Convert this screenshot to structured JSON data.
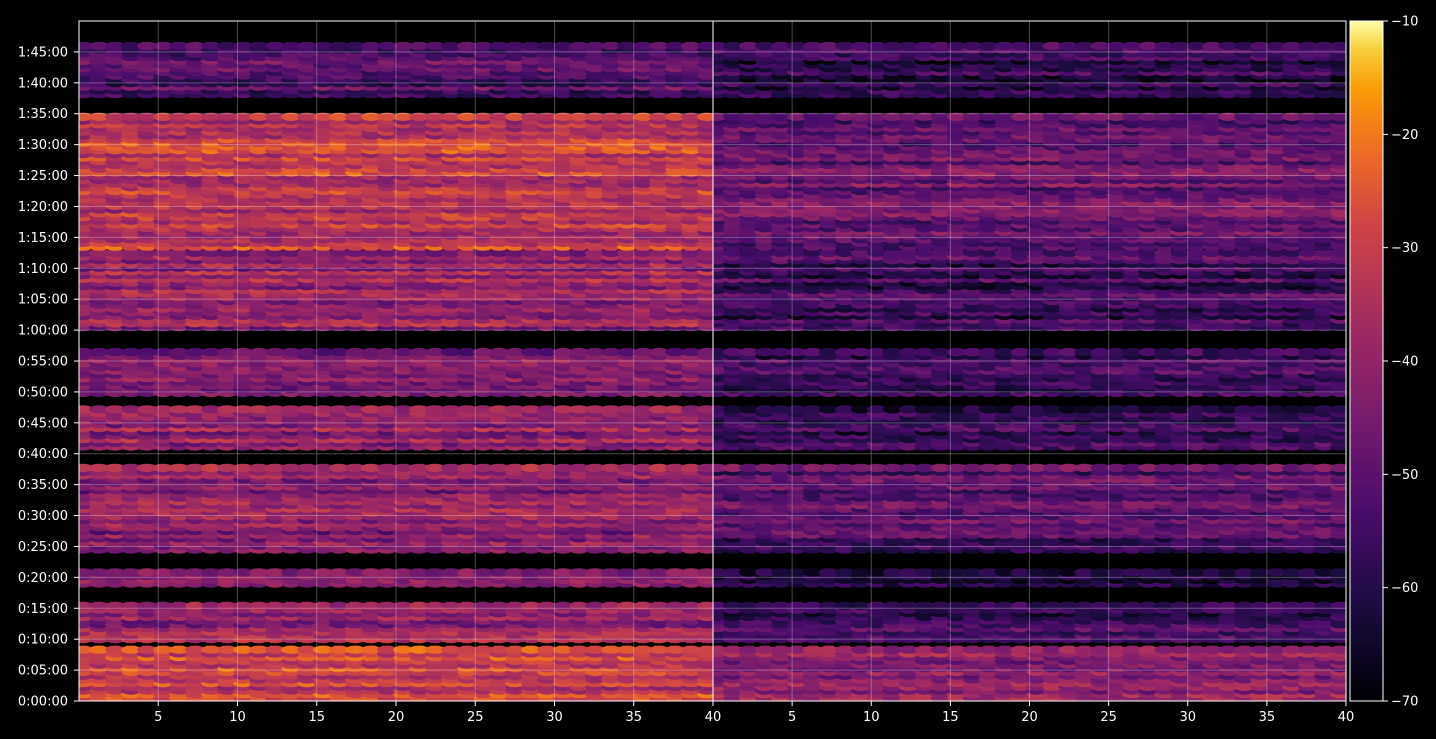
{
  "chart_data": {
    "type": "heatmap",
    "title": "",
    "xlabel": "",
    "ylabel": "",
    "colormap": "inferno",
    "background": "#000000",
    "grid": true,
    "color_range": [
      -70,
      -10
    ],
    "colorbar": {
      "ticks": [
        "-10",
        "-20",
        "-30",
        "-40",
        "-50",
        "-60",
        "-70"
      ],
      "tick_values": [
        -10,
        -20,
        -30,
        -40,
        -50,
        -60,
        -70
      ],
      "position": "right"
    },
    "panels": [
      {
        "name": "left",
        "xlim": [
          1,
          40
        ],
        "x_ticks": [
          "5",
          "10",
          "15",
          "20",
          "25",
          "30",
          "35",
          "40"
        ],
        "x_tick_values": [
          5,
          10,
          15,
          20,
          25,
          30,
          35,
          40
        ]
      },
      {
        "name": "right",
        "xlim": [
          1,
          40
        ],
        "x_ticks": [
          "5",
          "10",
          "15",
          "20",
          "25",
          "30",
          "35",
          "40"
        ],
        "x_tick_values": [
          5,
          10,
          15,
          20,
          25,
          30,
          35,
          40
        ]
      }
    ],
    "y_axis": {
      "ylim_seconds": [
        0,
        6600
      ],
      "ticks": [
        "0:00:00",
        "0:05:00",
        "0:10:00",
        "0:15:00",
        "0:20:00",
        "0:25:00",
        "0:30:00",
        "0:35:00",
        "0:40:00",
        "0:45:00",
        "0:50:00",
        "0:55:00",
        "1:00:00",
        "1:05:00",
        "1:10:00",
        "1:15:00",
        "1:20:00",
        "1:25:00",
        "1:30:00",
        "1:35:00",
        "1:40:00",
        "1:45:00"
      ],
      "tick_values_seconds": [
        0,
        300,
        600,
        900,
        1200,
        1500,
        1800,
        2100,
        2400,
        2700,
        3000,
        3300,
        3600,
        3900,
        4200,
        4500,
        4800,
        5100,
        5400,
        5700,
        6000,
        6300
      ]
    },
    "row_bands_seconds": [
      {
        "start": 30,
        "end": 510,
        "left_level": -30,
        "right_level": -40
      },
      {
        "start": 600,
        "end": 930,
        "left_level": -40,
        "right_level": -55
      },
      {
        "start": 1140,
        "end": 1260,
        "left_level": -45,
        "right_level": -60
      },
      {
        "start": 1470,
        "end": 2290,
        "left_level": -42,
        "right_level": -52
      },
      {
        "start": 2470,
        "end": 2830,
        "left_level": -40,
        "right_level": -55
      },
      {
        "start": 2990,
        "end": 3410,
        "left_level": -42,
        "right_level": -55
      },
      {
        "start": 3630,
        "end": 4360,
        "left_level": -40,
        "right_level": -55
      },
      {
        "start": 4410,
        "end": 5670,
        "left_level": -32,
        "right_level": -48
      },
      {
        "start": 5890,
        "end": 6380,
        "left_level": -52,
        "right_level": -58
      }
    ]
  }
}
